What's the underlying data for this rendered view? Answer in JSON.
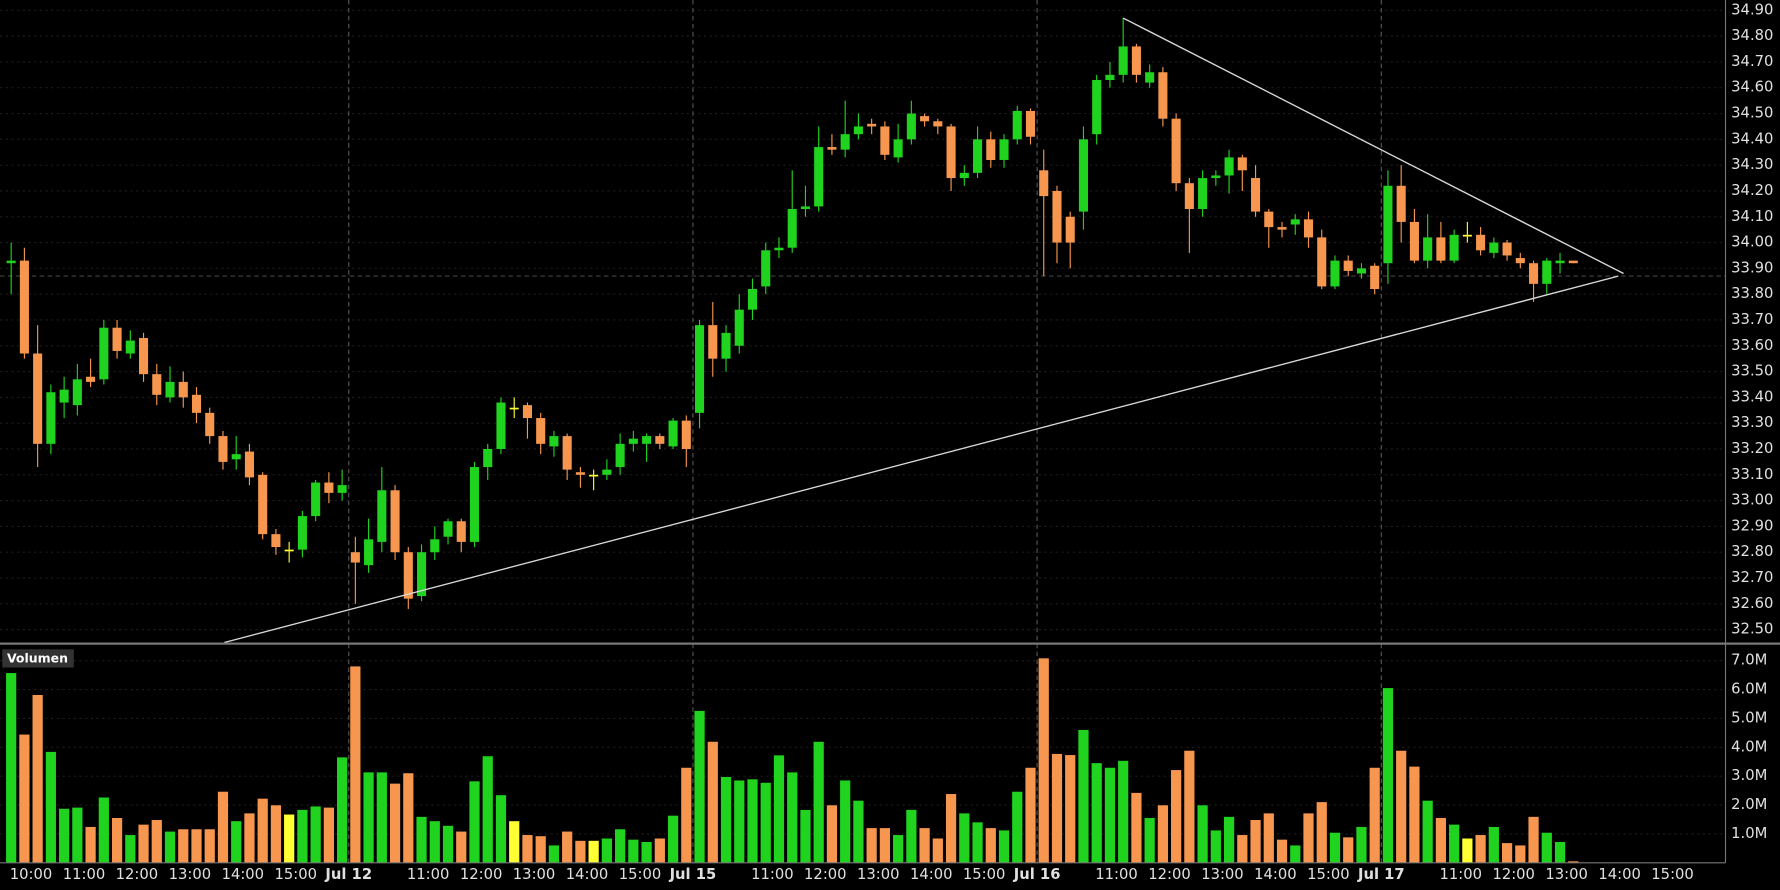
{
  "chart_data": {
    "type": "candlestick",
    "categories": [
      null,
      null,
      "10:00",
      null,
      null,
      null,
      "11:00",
      null,
      null,
      null,
      "12:00",
      null,
      null,
      null,
      "13:00",
      null,
      null,
      null,
      "14:00",
      null,
      null,
      null,
      "15:00",
      null,
      null,
      null,
      "Jul 12",
      null,
      null,
      null,
      null,
      null,
      "11:00",
      null,
      null,
      null,
      "12:00",
      null,
      null,
      null,
      "13:00",
      null,
      null,
      null,
      "14:00",
      null,
      null,
      null,
      "15:00",
      null,
      null,
      null,
      "Jul 15",
      null,
      null,
      null,
      null,
      null,
      "11:00",
      null,
      null,
      null,
      "12:00",
      null,
      null,
      null,
      "13:00",
      null,
      null,
      null,
      "14:00",
      null,
      null,
      null,
      "15:00",
      null,
      null,
      null,
      "Jul 16",
      null,
      null,
      null,
      null,
      null,
      "11:00",
      null,
      null,
      null,
      "12:00",
      null,
      null,
      null,
      "13:00",
      null,
      null,
      null,
      "14:00",
      null,
      null,
      null,
      "15:00",
      null,
      null,
      null,
      "Jul 17",
      null,
      null,
      null,
      null,
      null,
      "11:00",
      null,
      null,
      null,
      "12:00",
      null,
      null,
      null,
      "13:00",
      null,
      null,
      null,
      "14:00",
      null,
      null,
      null,
      "15:00",
      null,
      null,
      null
    ],
    "open": [
      33.92,
      33.93,
      33.57,
      33.22,
      33.38,
      33.37,
      33.48,
      33.47,
      33.67,
      33.57,
      33.63,
      33.49,
      33.4,
      33.46,
      33.41,
      33.34,
      33.25,
      33.16,
      33.19,
      33.1,
      32.87,
      32.81,
      32.81,
      32.94,
      33.07,
      33.03,
      32.8,
      32.75,
      32.84,
      33.04,
      32.8,
      32.63,
      32.8,
      32.86,
      32.92,
      32.84,
      33.13,
      33.2,
      33.36,
      33.37,
      33.32,
      33.21,
      33.25,
      33.11,
      33.1,
      33.1,
      33.13,
      33.22,
      33.22,
      33.25,
      33.21,
      33.31,
      33.34,
      33.68,
      33.55,
      33.6,
      33.74,
      33.83,
      33.97,
      33.98,
      34.13,
      34.14,
      34.37,
      34.36,
      34.42,
      34.46,
      34.45,
      34.33,
      34.4,
      34.49,
      34.47,
      34.45,
      34.25,
      34.27,
      34.4,
      34.32,
      34.4,
      34.51,
      34.28,
      34.2,
      34.1,
      34.12,
      34.42,
      34.63,
      34.65,
      34.76,
      34.62,
      34.66,
      34.48,
      34.23,
      34.13,
      34.25,
      34.26,
      34.33,
      34.25,
      34.12,
      34.06,
      34.07,
      34.09,
      34.02,
      33.83,
      33.93,
      33.88,
      33.91,
      33.92,
      34.22,
      34.08,
      33.93,
      34.02,
      33.93,
      34.03,
      34.03,
      33.96,
      34.0,
      33.94,
      33.92,
      33.84,
      33.92,
      33.93,
      null,
      null,
      null,
      null,
      null,
      null,
      null,
      null,
      null,
      null,
      null
    ],
    "high": [
      34.0,
      33.98,
      33.68,
      33.45,
      33.48,
      33.53,
      33.55,
      33.7,
      33.7,
      33.66,
      33.65,
      33.53,
      33.52,
      33.5,
      33.44,
      33.36,
      33.27,
      33.25,
      33.22,
      33.11,
      32.89,
      32.84,
      32.96,
      33.08,
      33.11,
      33.12,
      32.86,
      32.93,
      33.13,
      33.06,
      32.82,
      32.83,
      32.9,
      32.93,
      32.93,
      33.15,
      33.22,
      33.4,
      33.4,
      33.38,
      33.34,
      33.27,
      33.26,
      33.13,
      33.12,
      33.16,
      33.26,
      33.27,
      33.26,
      33.26,
      33.32,
      33.33,
      33.7,
      33.77,
      33.68,
      33.8,
      33.86,
      34.0,
      34.02,
      34.28,
      34.22,
      34.45,
      34.42,
      34.55,
      34.5,
      34.48,
      34.47,
      34.46,
      34.55,
      34.5,
      34.48,
      34.46,
      34.3,
      34.45,
      34.43,
      34.42,
      34.53,
      34.52,
      34.36,
      34.22,
      34.12,
      34.45,
      34.65,
      34.7,
      34.87,
      34.77,
      34.69,
      34.68,
      34.5,
      34.25,
      34.28,
      34.28,
      34.36,
      34.34,
      34.3,
      34.13,
      34.08,
      34.11,
      34.12,
      34.05,
      33.95,
      33.95,
      33.92,
      33.92,
      34.28,
      34.3,
      34.13,
      34.11,
      34.08,
      34.05,
      34.08,
      34.06,
      34.02,
      34.01,
      33.96,
      33.93,
      33.94,
      33.96,
      33.93,
      null,
      null,
      null,
      null,
      null,
      null,
      null,
      null,
      null,
      null,
      null
    ],
    "low": [
      33.8,
      33.55,
      33.13,
      33.18,
      33.32,
      33.33,
      33.44,
      33.45,
      33.55,
      33.55,
      33.46,
      33.37,
      33.38,
      33.36,
      33.3,
      33.22,
      33.12,
      33.12,
      33.06,
      32.85,
      32.79,
      32.76,
      32.78,
      32.92,
      32.99,
      33.0,
      32.6,
      32.72,
      32.8,
      32.77,
      32.58,
      32.61,
      32.77,
      32.83,
      32.8,
      32.82,
      33.08,
      33.18,
      33.32,
      33.24,
      33.18,
      33.17,
      33.08,
      33.05,
      33.04,
      33.08,
      33.1,
      33.19,
      33.15,
      33.2,
      33.2,
      33.13,
      33.28,
      33.48,
      33.5,
      33.57,
      33.7,
      33.8,
      33.94,
      33.96,
      34.1,
      34.12,
      34.34,
      34.33,
      34.4,
      34.42,
      34.32,
      34.31,
      34.38,
      34.45,
      34.42,
      34.2,
      34.22,
      34.25,
      34.29,
      34.29,
      34.38,
      34.38,
      33.87,
      33.92,
      33.9,
      34.05,
      34.38,
      34.6,
      34.62,
      34.62,
      34.6,
      34.45,
      34.2,
      33.96,
      34.1,
      34.22,
      34.19,
      34.2,
      34.1,
      33.98,
      34.02,
      34.03,
      33.98,
      33.82,
      33.82,
      33.87,
      33.86,
      33.8,
      33.84,
      34.0,
      33.92,
      33.9,
      33.92,
      33.92,
      34.0,
      33.95,
      33.94,
      33.93,
      33.9,
      33.77,
      33.8,
      33.88,
      33.92,
      null,
      null,
      null,
      null,
      null,
      null,
      null,
      null,
      null,
      null,
      null
    ],
    "close": [
      33.93,
      33.57,
      33.22,
      33.42,
      33.43,
      33.47,
      33.46,
      33.67,
      33.58,
      33.62,
      33.49,
      33.41,
      33.46,
      33.4,
      33.34,
      33.25,
      33.15,
      33.18,
      33.09,
      32.87,
      32.82,
      32.81,
      32.94,
      33.07,
      33.03,
      33.06,
      32.76,
      32.85,
      33.04,
      32.8,
      32.62,
      32.8,
      32.85,
      32.92,
      32.84,
      33.13,
      33.2,
      33.38,
      33.36,
      33.32,
      33.22,
      33.25,
      33.12,
      33.1,
      33.1,
      33.12,
      33.22,
      33.24,
      33.25,
      33.22,
      33.31,
      33.2,
      33.68,
      33.55,
      33.65,
      33.74,
      33.82,
      33.97,
      33.98,
      34.13,
      34.14,
      34.37,
      34.36,
      34.42,
      34.45,
      34.45,
      34.34,
      34.4,
      34.5,
      34.47,
      34.45,
      34.25,
      34.27,
      34.4,
      34.32,
      34.4,
      34.51,
      34.41,
      34.18,
      34.0,
      34.0,
      34.4,
      34.63,
      34.65,
      34.76,
      34.65,
      34.66,
      34.48,
      34.23,
      34.13,
      34.25,
      34.26,
      34.33,
      34.28,
      34.12,
      34.06,
      34.05,
      34.09,
      34.02,
      33.83,
      33.93,
      33.89,
      33.9,
      33.82,
      34.22,
      34.08,
      33.93,
      34.02,
      33.93,
      34.03,
      34.03,
      33.97,
      34.0,
      33.95,
      33.92,
      33.84,
      33.93,
      33.93,
      33.92,
      null,
      null,
      null,
      null,
      null,
      null,
      null,
      null,
      null,
      null,
      null
    ],
    "ylim": [
      32.45,
      34.94
    ],
    "yticks": [
      {
        "value": 32.5,
        "label": "32.50"
      },
      {
        "value": 32.6,
        "label": "32.60"
      },
      {
        "value": 32.7,
        "label": "32.70"
      },
      {
        "value": 32.8,
        "label": "32.80"
      },
      {
        "value": 32.9,
        "label": "32.90"
      },
      {
        "value": 33.0,
        "label": "33.00"
      },
      {
        "value": 33.1,
        "label": "33.10"
      },
      {
        "value": 33.2,
        "label": "33.20"
      },
      {
        "value": 33.3,
        "label": "33.30"
      },
      {
        "value": 33.4,
        "label": "33.40"
      },
      {
        "value": 33.5,
        "label": "33.50"
      },
      {
        "value": 33.6,
        "label": "33.60"
      },
      {
        "value": 33.7,
        "label": "33.70"
      },
      {
        "value": 33.8,
        "label": "33.80"
      },
      {
        "value": 33.9,
        "label": "33.90"
      },
      {
        "value": 34.0,
        "label": "34.00"
      },
      {
        "value": 34.1,
        "label": "34.10"
      },
      {
        "value": 34.2,
        "label": "34.20"
      },
      {
        "value": 34.3,
        "label": "34.30"
      },
      {
        "value": 34.4,
        "label": "34.40"
      },
      {
        "value": 34.5,
        "label": "34.50"
      },
      {
        "value": 34.6,
        "label": "34.60"
      },
      {
        "value": 34.7,
        "label": "34.70"
      },
      {
        "value": 34.8,
        "label": "34.80"
      },
      {
        "value": 34.9,
        "label": "34.90"
      }
    ],
    "grid": true,
    "up_color": "#1fd31f",
    "down_color": "#f7974f",
    "flat_color": "#ffff33",
    "trendlines": [
      {
        "x": [
          84.5,
          122.3
        ],
        "y": [
          34.87,
          33.88
        ],
        "color": "#d8d8d8"
      },
      {
        "x": [
          16.6,
          121.9
        ],
        "y": [
          32.45,
          33.87
        ],
        "color": "#d8d8d8"
      }
    ],
    "reference_line": 33.87,
    "volume": {
      "name": "Volumen",
      "values": [
        6.57,
        4.44,
        5.81,
        3.84,
        1.87,
        1.91,
        1.24,
        2.26,
        1.55,
        0.96,
        1.32,
        1.48,
        1.08,
        1.16,
        1.16,
        1.16,
        2.46,
        1.44,
        1.71,
        2.22,
        1.99,
        1.67,
        1.83,
        1.95,
        1.91,
        3.65,
        6.8,
        3.13,
        3.13,
        2.74,
        3.1,
        1.59,
        1.44,
        1.28,
        1.08,
        2.82,
        3.69,
        2.34,
        1.44,
        0.96,
        0.92,
        0.6,
        1.08,
        0.76,
        0.76,
        0.84,
        1.16,
        0.8,
        0.72,
        0.84,
        1.63,
        3.29,
        5.26,
        4.19,
        2.97,
        2.85,
        2.89,
        2.77,
        3.72,
        3.13,
        1.83,
        4.19,
        1.99,
        2.85,
        2.15,
        1.2,
        1.2,
        0.96,
        1.83,
        1.2,
        0.84,
        2.38,
        1.71,
        1.4,
        1.2,
        1.12,
        2.46,
        3.29,
        7.08,
        3.77,
        3.73,
        4.6,
        3.45,
        3.29,
        3.53,
        2.42,
        1.55,
        1.99,
        3.21,
        3.88,
        1.99,
        1.12,
        1.59,
        0.96,
        1.48,
        1.71,
        0.8,
        0.6,
        1.71,
        2.1,
        1.04,
        0.88,
        1.24,
        3.29,
        6.05,
        3.88,
        3.33,
        2.15,
        1.55,
        1.32,
        0.84,
        0.96,
        1.24,
        0.68,
        0.6,
        1.59,
        1.04,
        0.72,
        0.05,
        null,
        null,
        null,
        null,
        null,
        null,
        null,
        null,
        null,
        null,
        null
      ],
      "ylim": [
        0,
        7.47
      ],
      "yticks": [
        {
          "value": 1,
          "label": "1.0M"
        },
        {
          "value": 2,
          "label": "2.0M"
        },
        {
          "value": 3,
          "label": "3.0M"
        },
        {
          "value": 4,
          "label": "4.0M"
        },
        {
          "value": 5,
          "label": "5.0M"
        },
        {
          "value": 6,
          "label": "6.0M"
        },
        {
          "value": 7,
          "label": "7.0M"
        }
      ]
    }
  }
}
